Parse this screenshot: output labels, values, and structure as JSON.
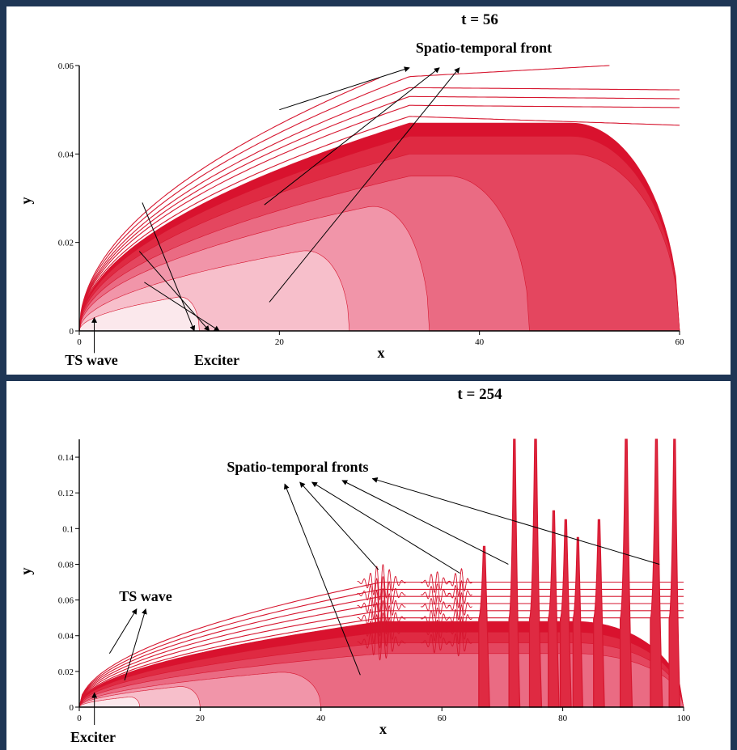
{
  "colors": {
    "background": "#1f3655",
    "panel": "#ffffff",
    "levels": [
      "#fbe8ec",
      "#f7bfcb",
      "#f195a9",
      "#ea6b83",
      "#e4465f",
      "#df2a42",
      "#d9122e"
    ],
    "line": "#d6162f",
    "axis": "#000000"
  },
  "chart_data": [
    {
      "type": "contour",
      "title": "t = 56",
      "xlabel": "x",
      "ylabel": "y",
      "xlim": [
        0,
        60
      ],
      "ylim": [
        0,
        0.06
      ],
      "xticks": [
        0,
        20,
        40,
        60
      ],
      "xtick_labels": [
        "0",
        "20",
        "40",
        "60"
      ],
      "yticks": [
        0,
        0.02,
        0.04,
        0.06
      ],
      "ytick_labels": [
        "0",
        "0.02",
        "0.04",
        "0.06"
      ],
      "exciter_x": 1.5,
      "ts_wave_x": 5,
      "front_x": 18.5,
      "front_y": 0.039,
      "levels": [
        {
          "height": 0.014,
          "xend": 12
        },
        {
          "height": 0.022,
          "xend": 27
        },
        {
          "height": 0.03,
          "xend": 35
        },
        {
          "height": 0.035,
          "xend": 45
        },
        {
          "height": 0.04,
          "xend": 60
        },
        {
          "height": 0.044,
          "xend": 60
        },
        {
          "height": 0.047,
          "xend": 60
        }
      ],
      "contour_lines": [
        {
          "height": 0.0485,
          "xend": 60,
          "yend": 0.0465
        },
        {
          "height": 0.051,
          "xend": 60,
          "yend": 0.0505
        },
        {
          "height": 0.053,
          "xend": 60,
          "yend": 0.0525
        },
        {
          "height": 0.055,
          "xend": 60,
          "yend": 0.0545
        },
        {
          "height": 0.0575,
          "xend": 53,
          "yend": 0.06
        },
        {
          "height": 0.06,
          "xend": 30,
          "yend": 0.06
        }
      ],
      "annotations": [
        {
          "text": "Spatio-temporal front",
          "from": [
            [
              20,
              0.05
            ],
            [
              18.5,
              0.0285
            ],
            [
              19,
              0.0065
            ]
          ],
          "to": [
            [
              33,
              0.0595
            ],
            [
              36,
              0.0595
            ],
            [
              38,
              0.0595
            ]
          ]
        },
        {
          "text": "TS wave",
          "from": [
            [
              6.3,
              0.029
            ],
            [
              6,
              0.018
            ],
            [
              6.5,
              0.011
            ]
          ],
          "to": [
            [
              11.5,
              0
            ],
            [
              13,
              0
            ],
            [
              14,
              0
            ]
          ]
        },
        {
          "text": "Exciter",
          "from": [
            [
              1.5,
              -0.005
            ]
          ],
          "to": [
            [
              1.5,
              0.003
            ]
          ]
        }
      ]
    },
    {
      "type": "contour",
      "title": "t = 254",
      "xlabel": "x",
      "ylabel": "y",
      "xlim": [
        0,
        100
      ],
      "ylim": [
        0,
        0.15
      ],
      "xticks": [
        0,
        20,
        40,
        60,
        80,
        100
      ],
      "xtick_labels": [
        "0",
        "20",
        "40",
        "60",
        "80",
        "100"
      ],
      "yticks": [
        0,
        0.02,
        0.04,
        0.06,
        0.08,
        0.1,
        0.12,
        0.14
      ],
      "ytick_labels": [
        "0",
        "0.02",
        "0.04",
        "0.06",
        "0.08",
        "0.1",
        "0.12",
        "0.14"
      ],
      "exciter_x": 2.5,
      "levels": [
        {
          "height": 0.014,
          "xend": 10
        },
        {
          "height": 0.02,
          "xend": 20
        },
        {
          "height": 0.024,
          "xend": 40
        },
        {
          "height": 0.03,
          "xend": 100
        },
        {
          "height": 0.036,
          "xend": 100
        },
        {
          "height": 0.042,
          "xend": 100
        },
        {
          "height": 0.048,
          "xend": 100
        }
      ],
      "contour_lines": [
        {
          "height": 0.05
        },
        {
          "height": 0.054
        },
        {
          "height": 0.058
        },
        {
          "height": 0.062
        },
        {
          "height": 0.066
        },
        {
          "height": 0.07
        }
      ],
      "wave_packets": [
        {
          "x": 50,
          "amp": 0.01,
          "width": 4
        },
        {
          "x": 59,
          "amp": 0.006,
          "width": 2.5
        },
        {
          "x": 63,
          "amp": 0.008,
          "width": 2
        }
      ],
      "spikes": [
        {
          "x": 67,
          "height": 0.09,
          "width": 0.45
        },
        {
          "x": 72,
          "height": 0.15,
          "width": 0.45
        },
        {
          "x": 75.5,
          "height": 0.15,
          "width": 0.5
        },
        {
          "x": 78.5,
          "height": 0.11,
          "width": 0.45
        },
        {
          "x": 80.5,
          "height": 0.105,
          "width": 0.45
        },
        {
          "x": 82.5,
          "height": 0.095,
          "width": 0.4
        },
        {
          "x": 86,
          "height": 0.105,
          "width": 0.45
        },
        {
          "x": 90.5,
          "height": 0.15,
          "width": 0.5
        },
        {
          "x": 95.5,
          "height": 0.15,
          "width": 0.5
        },
        {
          "x": 98.5,
          "height": 0.15,
          "width": 0.45
        }
      ],
      "annotations": [
        {
          "text": "Spatio-temporal fronts",
          "from": [
            [
              46.5,
              0.018
            ],
            [
              49.5,
              0.077
            ],
            [
              63,
              0.075
            ],
            [
              71,
              0.08
            ],
            [
              96,
              0.08
            ]
          ],
          "to": [
            [
              34,
              0.125
            ],
            [
              36.5,
              0.126
            ],
            [
              38.5,
              0.126
            ],
            [
              43.5,
              0.127
            ],
            [
              48.5,
              0.128
            ]
          ]
        },
        {
          "text": "TS wave",
          "from": [
            [
              5,
              0.03
            ],
            [
              7.5,
              0.015
            ]
          ],
          "to": [
            [
              9.5,
              0.055
            ],
            [
              11,
              0.055
            ]
          ]
        },
        {
          "text": "Exciter",
          "from": [
            [
              2.5,
              -0.01
            ]
          ],
          "to": [
            [
              2.5,
              0.008
            ]
          ]
        }
      ]
    }
  ]
}
